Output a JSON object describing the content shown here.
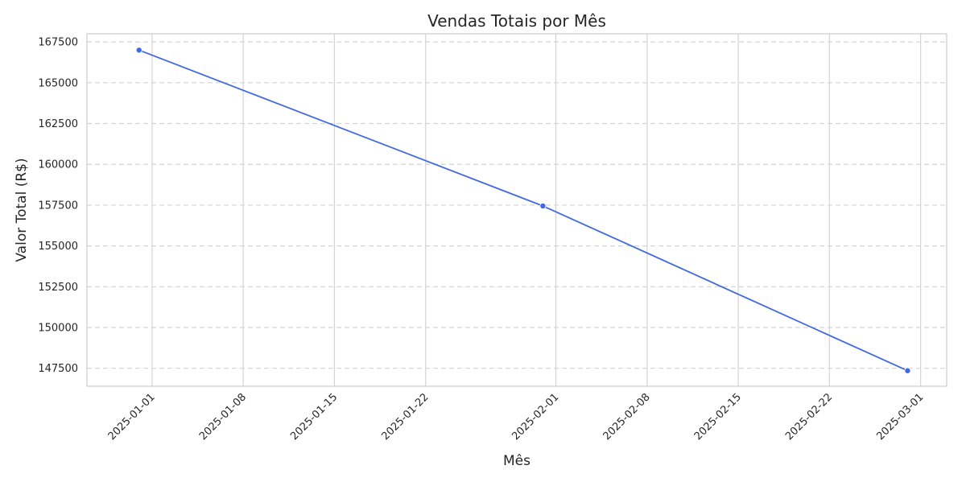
{
  "chart_data": {
    "type": "line",
    "title": "Vendas Totais por Mês",
    "xlabel": "Mês",
    "ylabel": "Valor Total (R$)",
    "x_type": "date",
    "xlim": [
      "2024-12-27",
      "2025-03-03"
    ],
    "ylim": [
      146400,
      168000
    ],
    "x_ticks": [
      "2025-01-01",
      "2025-01-08",
      "2025-01-15",
      "2025-01-22",
      "2025-02-01",
      "2025-02-08",
      "2025-02-15",
      "2025-02-22",
      "2025-03-01"
    ],
    "y_ticks": [
      147500,
      150000,
      152500,
      155000,
      157500,
      160000,
      162500,
      165000,
      167500
    ],
    "x_tick_rotation": 45,
    "grid": {
      "x": "solid",
      "y": "dashed"
    },
    "legend": "none",
    "series": [
      {
        "color": "#4169e1",
        "marker": "circle",
        "points": [
          {
            "x": "2024-12-31",
            "y": 167000
          },
          {
            "x": "2025-01-31",
            "y": 157450
          },
          {
            "x": "2025-02-28",
            "y": 147350
          }
        ]
      }
    ]
  }
}
